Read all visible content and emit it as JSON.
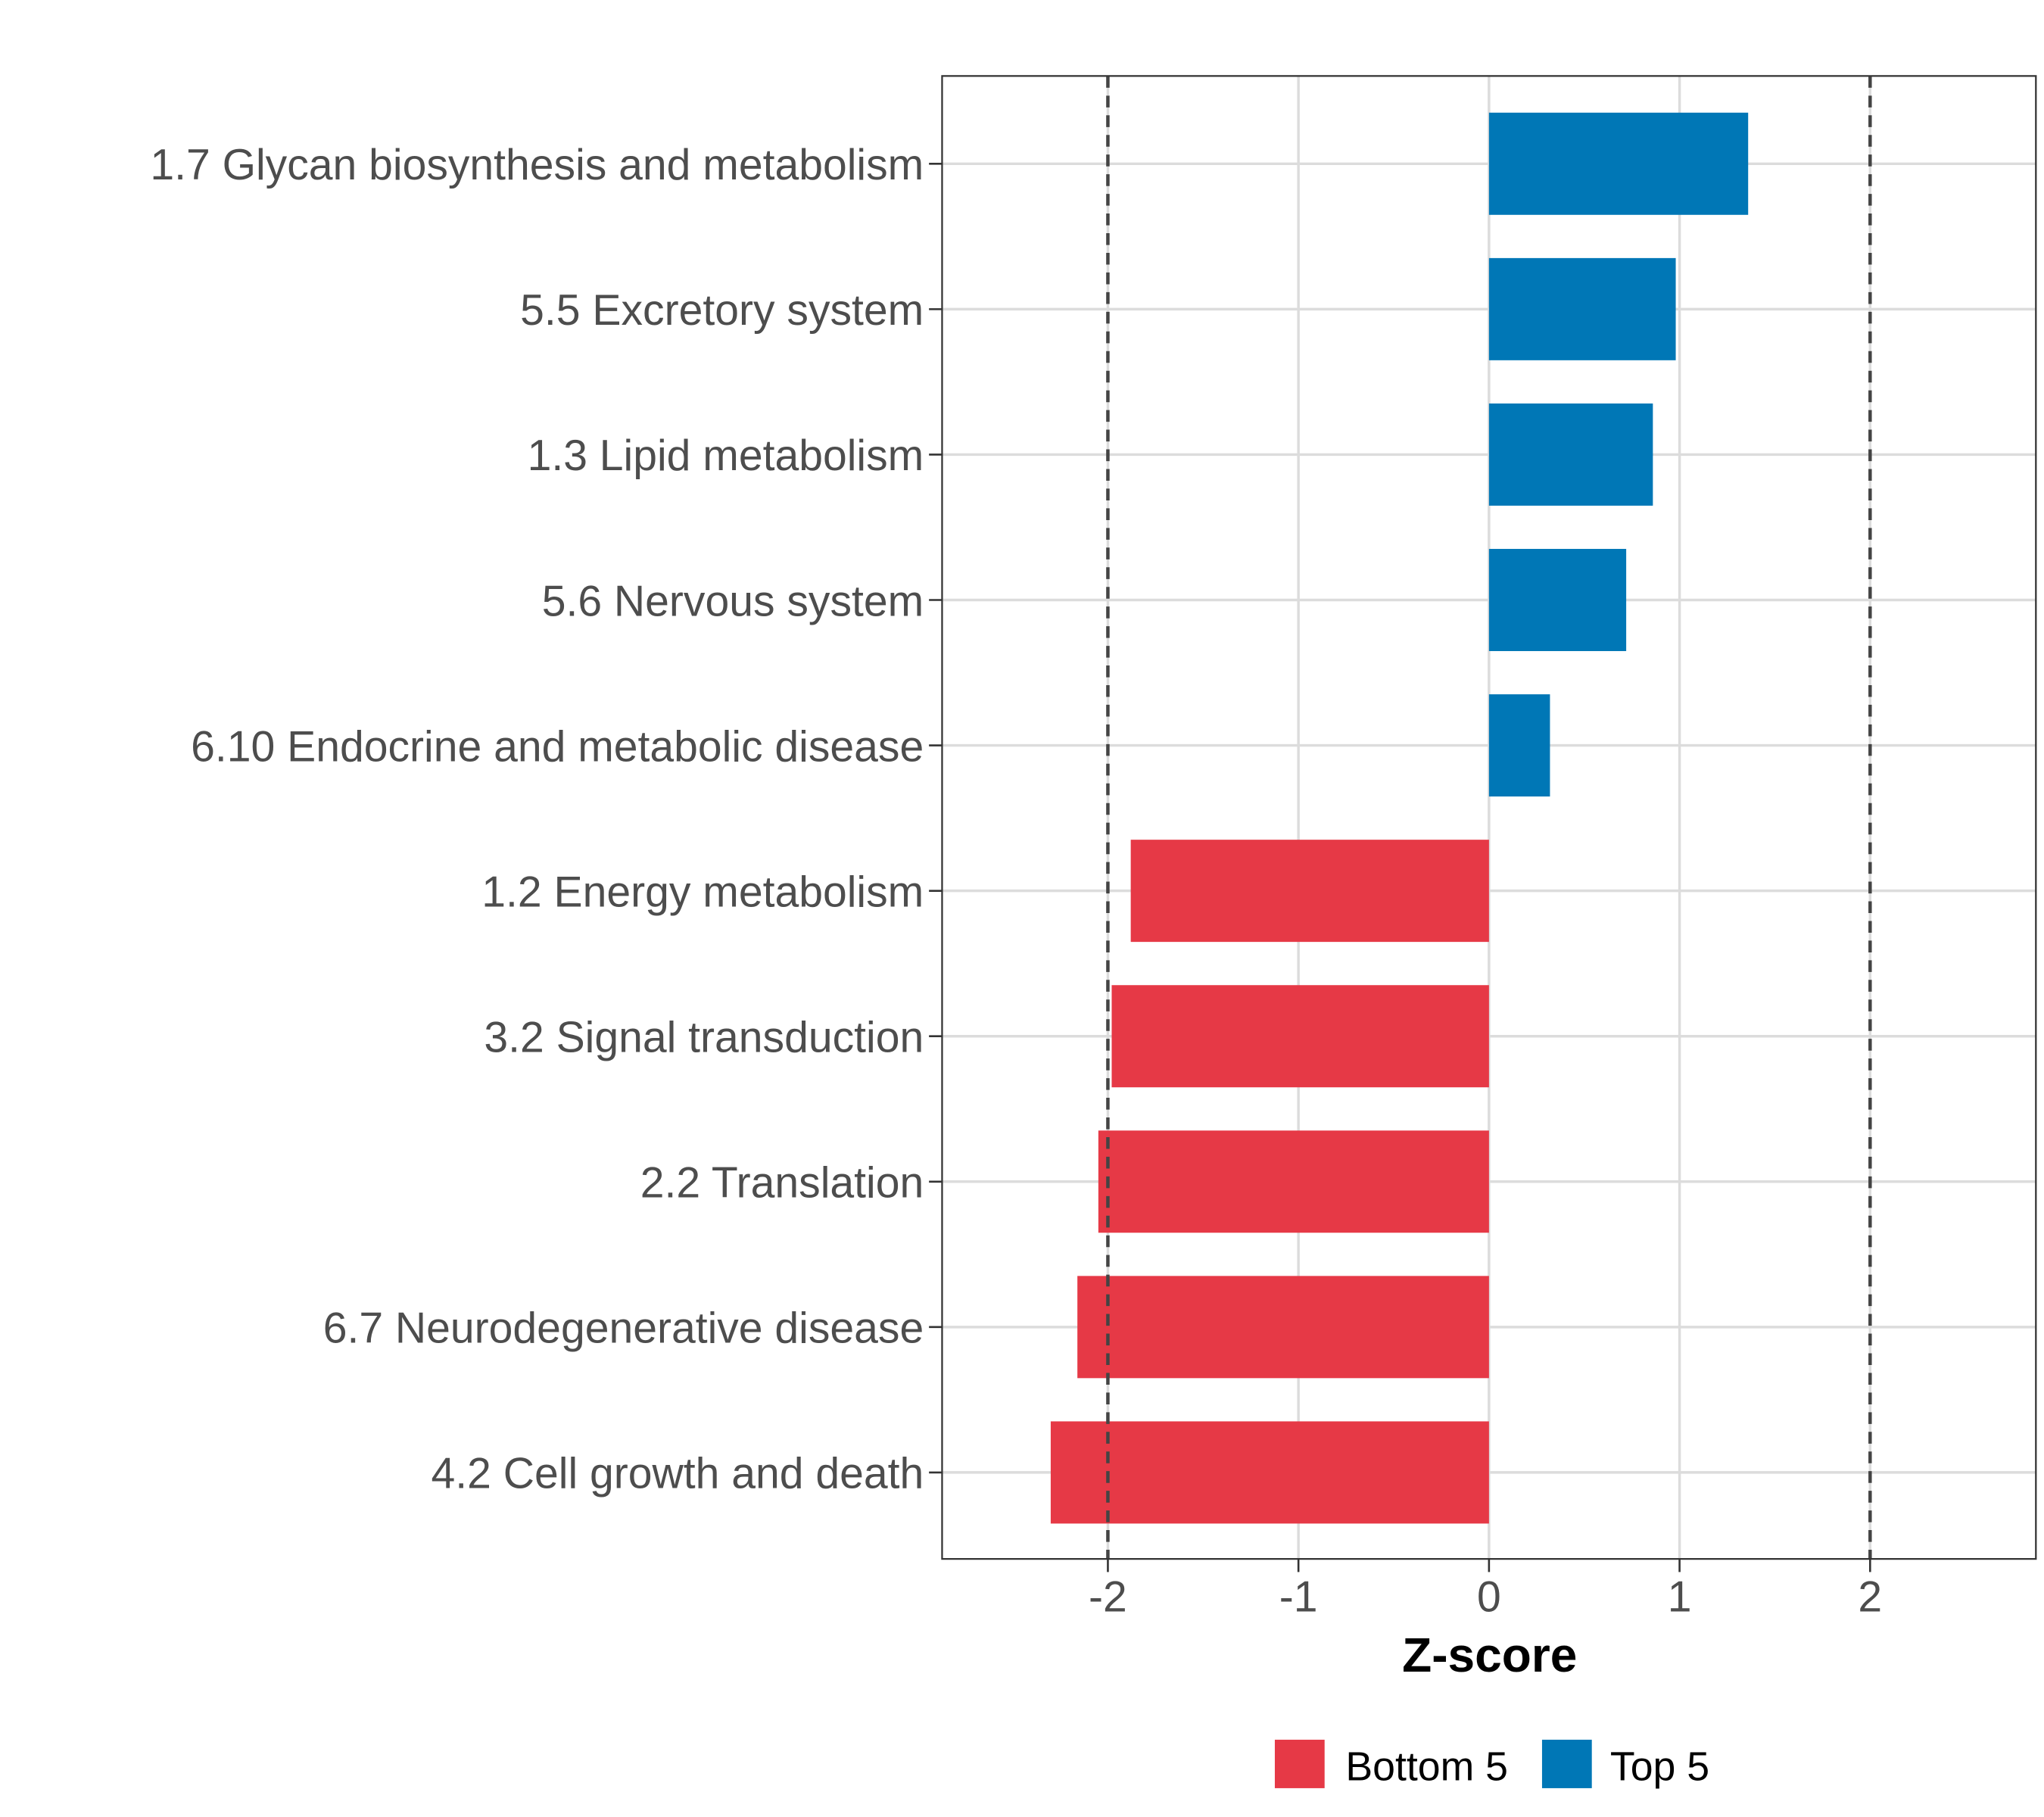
{
  "chart_data": {
    "type": "bar",
    "orientation": "horizontal",
    "title": "",
    "xlabel": "Z-score",
    "ylabel": "",
    "xlim": [
      -2.87,
      2.87
    ],
    "xticks": [
      -2,
      -1,
      0,
      1,
      2
    ],
    "xtick_labels": [
      "-2",
      "-1",
      "0",
      "1",
      "2"
    ],
    "reference_lines": [
      -2,
      2
    ],
    "grid": true,
    "categories": [
      "1.7 Glycan biosynthesis and metabolism",
      "5.5 Excretory system",
      "1.3 Lipid metabolism",
      "5.6 Nervous system",
      "6.10 Endocrine and metabolic disease",
      "1.2 Energy metabolism",
      "3.2 Signal transduction",
      "2.2 Translation",
      "6.7 Neurodegenerative disease",
      "4.2 Cell growth and death"
    ],
    "values": [
      1.36,
      0.98,
      0.86,
      0.72,
      0.32,
      -1.88,
      -1.98,
      -2.05,
      -2.16,
      -2.3
    ],
    "groups": [
      "Top 5",
      "Top 5",
      "Top 5",
      "Top 5",
      "Top 5",
      "Bottom 5",
      "Bottom 5",
      "Bottom 5",
      "Bottom 5",
      "Bottom 5"
    ],
    "legend": {
      "position": "bottom",
      "entries": [
        {
          "label": "Bottom 5",
          "color": "#E63946"
        },
        {
          "label": "Top 5",
          "color": "#0077B6"
        }
      ]
    }
  }
}
